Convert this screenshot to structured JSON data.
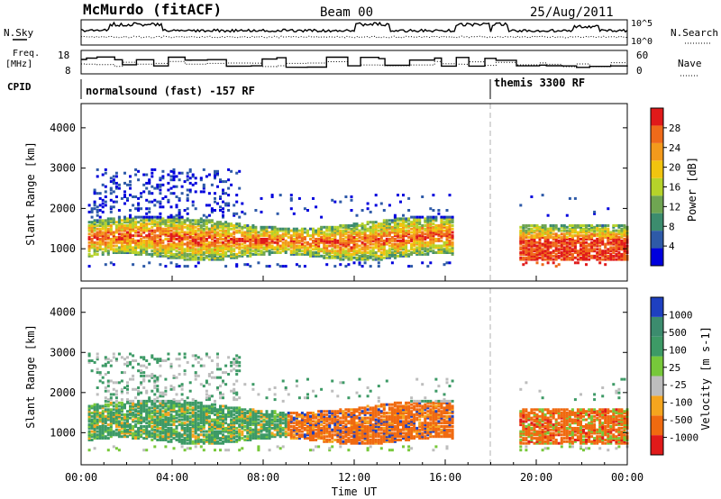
{
  "header": {
    "station": "McMurdo (fitACF)",
    "beam": "Beam 00",
    "date": "25/Aug/2011"
  },
  "noise_panel": {
    "left_label": "N.Sky",
    "right_label": "N.Search",
    "tick_top": "10^5",
    "tick_bottom": "10^0"
  },
  "freq_panel": {
    "left_label_line1": "Freq.",
    "left_label_line2": "[MHz]",
    "right_label": "Nave",
    "left_tick_top": "18",
    "left_tick_bottom": "8",
    "right_tick_top": "60",
    "right_tick_bottom": "0"
  },
  "cpid_panel": {
    "label": "CPID",
    "segments": [
      {
        "text": "normalsound (fast) -157 RF",
        "start_hour": 0
      },
      {
        "text": "themis 3300 RF",
        "start_hour": 18
      }
    ]
  },
  "x_axis": {
    "label": "Time UT",
    "ticks": [
      "00:00",
      "04:00",
      "08:00",
      "12:00",
      "16:00",
      "20:00",
      "00:00"
    ]
  },
  "chart_data": [
    {
      "type": "heatmap",
      "title": "Power",
      "ylabel": "Slant Range [km]",
      "yticks": [
        "1000",
        "2000",
        "3000",
        "4000"
      ],
      "ylim": [
        200,
        4600
      ],
      "xlim": [
        0,
        24
      ],
      "colorbar": {
        "label": "Power [dB]",
        "ticks": [
          "4",
          "8",
          "12",
          "16",
          "20",
          "24",
          "28"
        ],
        "range": [
          0,
          32
        ]
      },
      "features": [
        {
          "x": [
            0.3,
            16.3
          ],
          "y": [
            800,
            1800
          ],
          "level": "high"
        },
        {
          "x": [
            19.3,
            24
          ],
          "y": [
            800,
            1700
          ],
          "level": "high"
        },
        {
          "x": [
            0.5,
            7
          ],
          "y": [
            2000,
            3000
          ],
          "level": "low"
        }
      ]
    },
    {
      "type": "heatmap",
      "title": "Velocity",
      "ylabel": "Slant Range [km]",
      "yticks": [
        "1000",
        "2000",
        "3000",
        "4000"
      ],
      "ylim": [
        200,
        4600
      ],
      "xlim": [
        0,
        24
      ],
      "colorbar": {
        "label": "Velocity [m s-1]",
        "ticks": [
          "1000",
          "500",
          "100",
          "25",
          "-25",
          "-100",
          "-500",
          "-1000"
        ]
      },
      "features": [
        {
          "x": [
            0.3,
            9
          ],
          "y": [
            800,
            1800
          ],
          "dominant": "green"
        },
        {
          "x": [
            9,
            16.3
          ],
          "y": [
            800,
            1800
          ],
          "dominant": "orange"
        },
        {
          "x": [
            19.3,
            24
          ],
          "y": [
            700,
            1600
          ],
          "dominant": "orange"
        }
      ]
    }
  ],
  "colors": {
    "power_scale": [
      "#0000dd",
      "#2e5aa8",
      "#3c8c6e",
      "#6fa552",
      "#b6d32a",
      "#f1c40f",
      "#f39a1c",
      "#ef6a1a",
      "#e01a1a"
    ],
    "velocity_scale": [
      "#e01a1a",
      "#f06a10",
      "#f5a51e",
      "#bdbdbd",
      "#77c83a",
      "#3d9a66",
      "#3c8c6e",
      "#1e40c0"
    ],
    "marker": "#b0b0b0"
  }
}
